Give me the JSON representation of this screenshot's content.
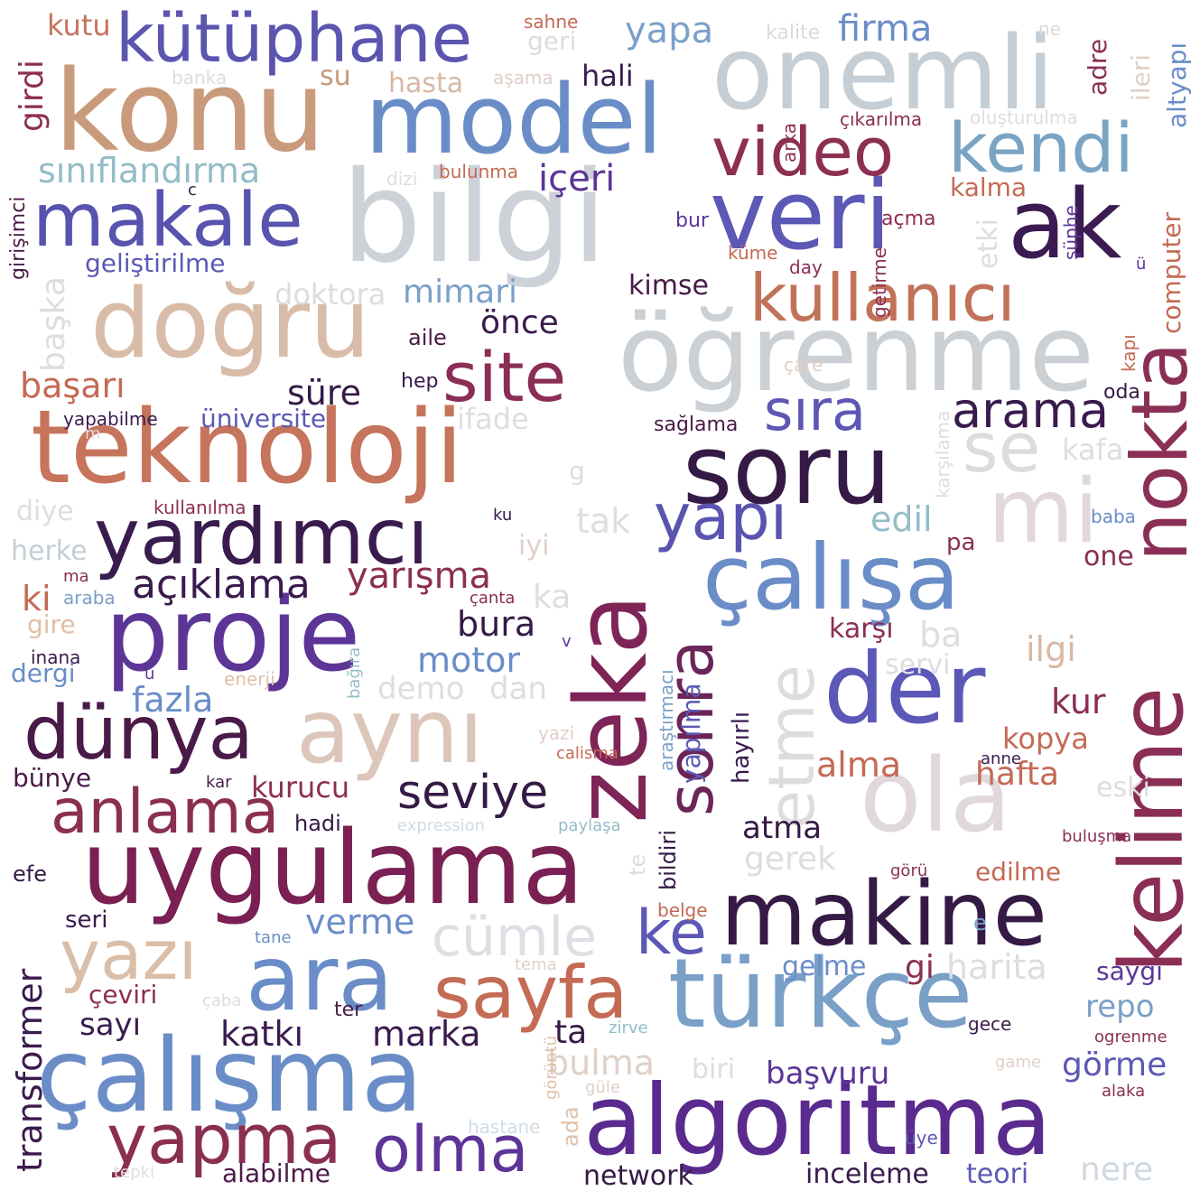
{
  "words": [
    {
      "text": "konu",
      "color": "#C99A7B"
    },
    {
      "text": "model",
      "color": "#6A8DC8"
    },
    {
      "text": "onemli",
      "color": "#C5CED5"
    },
    {
      "text": "kütüphane",
      "color": "#5B55B0"
    },
    {
      "text": "bilgi",
      "color": "#CDD2D8"
    },
    {
      "text": "veri",
      "color": "#5C58B5"
    },
    {
      "text": "ak",
      "color": "#3B1C52"
    },
    {
      "text": "video",
      "color": "#8C2F52"
    },
    {
      "text": "kendi",
      "color": "#7AA4C4"
    },
    {
      "text": "makale",
      "color": "#5753AE"
    },
    {
      "text": "doğru",
      "color": "#D8BCA8"
    },
    {
      "text": "öğrenme",
      "color": "#CBD0D5"
    },
    {
      "text": "kullanıcı",
      "color": "#C17259"
    },
    {
      "text": "site",
      "color": "#8A2E55"
    },
    {
      "text": "teknoloji",
      "color": "#C6745C"
    },
    {
      "text": "soru",
      "color": "#351A45"
    },
    {
      "text": "sıra",
      "color": "#5D56B3"
    },
    {
      "text": "arama",
      "color": "#3A1B4E"
    },
    {
      "text": "se",
      "color": "#DCDCE0"
    },
    {
      "text": "mi",
      "color": "#E2D8DA"
    },
    {
      "text": "nokta",
      "color": "#8A2F55"
    },
    {
      "text": "yardımcı",
      "color": "#3A1B4E"
    },
    {
      "text": "yapı",
      "color": "#5A54B0"
    },
    {
      "text": "çalışa",
      "color": "#6A8DC8"
    },
    {
      "text": "proje",
      "color": "#5C3597"
    },
    {
      "text": "açıklama",
      "color": "#3A1B4E"
    },
    {
      "text": "yarışma",
      "color": "#8C2F52"
    },
    {
      "text": "zeka",
      "color": "#7E2456"
    },
    {
      "text": "sonra",
      "color": "#6A2559"
    },
    {
      "text": "etme",
      "color": "#DFDCE0"
    },
    {
      "text": "der",
      "color": "#5C58B8"
    },
    {
      "text": "kelime",
      "color": "#8A2E55"
    },
    {
      "text": "dünya",
      "color": "#4A1A48"
    },
    {
      "text": "aynı",
      "color": "#DCC6BA"
    },
    {
      "text": "ola",
      "color": "#E0D8DD"
    },
    {
      "text": "anlama",
      "color": "#8A2F52"
    },
    {
      "text": "seviye",
      "color": "#351A45"
    },
    {
      "text": "uygulama",
      "color": "#7A2052"
    },
    {
      "text": "makine",
      "color": "#351A45"
    },
    {
      "text": "yazı",
      "color": "#DABEA8"
    },
    {
      "text": "ara",
      "color": "#6A8DC8"
    },
    {
      "text": "cümle",
      "color": "#E1DDE4"
    },
    {
      "text": "ke",
      "color": "#5C58B5"
    },
    {
      "text": "sayfa",
      "color": "#C46A55"
    },
    {
      "text": "türkçe",
      "color": "#7AA0C8"
    },
    {
      "text": "çalışma",
      "color": "#6A8DC8"
    },
    {
      "text": "yapma",
      "color": "#8A2F52"
    },
    {
      "text": "olma",
      "color": "#5E3498"
    },
    {
      "text": "algoritma",
      "color": "#5A2A8E"
    },
    {
      "text": "transformer",
      "color": "#3A1B4E"
    },
    {
      "text": "kutu",
      "color": "#C6745C"
    },
    {
      "text": "girdi",
      "color": "#8C2F52"
    },
    {
      "text": "su",
      "color": "#C49A7A"
    },
    {
      "text": "banka",
      "color": "#DCDCE0"
    },
    {
      "text": "sahne",
      "color": "#C46A55"
    },
    {
      "text": "geri",
      "color": "#E0DCDD"
    },
    {
      "text": "aşama",
      "color": "#E0D0CA"
    },
    {
      "text": "hasta",
      "color": "#D8B8A5"
    },
    {
      "text": "yapa",
      "color": "#7AA0C8"
    },
    {
      "text": "kalite",
      "color": "#D8DCE0"
    },
    {
      "text": "firma",
      "color": "#6A8DC8"
    },
    {
      "text": "ne",
      "color": "#E0D8DA"
    },
    {
      "text": "hali",
      "color": "#3A1B4E"
    },
    {
      "text": "adre",
      "color": "#8A2E55"
    },
    {
      "text": "ileri",
      "color": "#E0D0C8"
    },
    {
      "text": "altyapı",
      "color": "#6A8DC8"
    },
    {
      "text": "arka",
      "color": "#8C2F52"
    },
    {
      "text": "çıkarılma",
      "color": "#8A2E55"
    },
    {
      "text": "oluşturulma",
      "color": "#E0DCE0"
    },
    {
      "text": "sınıflandırma",
      "color": "#94BCC8"
    },
    {
      "text": "içeri",
      "color": "#5C3597"
    },
    {
      "text": "bulunma",
      "color": "#C46A55"
    },
    {
      "text": "dizi",
      "color": "#E0DCE0"
    },
    {
      "text": "c",
      "color": "#3A1B4E"
    },
    {
      "text": "girişimci",
      "color": "#4A1A48"
    },
    {
      "text": "kalma",
      "color": "#C46A55"
    },
    {
      "text": "bur",
      "color": "#5E3498"
    },
    {
      "text": "açma",
      "color": "#8C2F52"
    },
    {
      "text": "etki",
      "color": "#E0DCE0"
    },
    {
      "text": "şüphe",
      "color": "#5E3498"
    },
    {
      "text": "computer",
      "color": "#C46A55"
    },
    {
      "text": "geliştirilme",
      "color": "#5C58B5"
    },
    {
      "text": "küme",
      "color": "#C46A55"
    },
    {
      "text": "day",
      "color": "#8A2E55"
    },
    {
      "text": "getirme",
      "color": "#8C2F52"
    },
    {
      "text": "ü",
      "color": "#5E3498"
    },
    {
      "text": "doktora",
      "color": "#E0DCDD"
    },
    {
      "text": "mimari",
      "color": "#7AA0C8"
    },
    {
      "text": "kimse",
      "color": "#4A1A48"
    },
    {
      "text": "başka",
      "color": "#E0DCE0"
    },
    {
      "text": "önce",
      "color": "#3A1B4E"
    },
    {
      "text": "aile",
      "color": "#4A1A48"
    },
    {
      "text": "çare",
      "color": "#E0D0C8"
    },
    {
      "text": "kapı",
      "color": "#C46A55"
    },
    {
      "text": "başarı",
      "color": "#C46A55"
    },
    {
      "text": "hep",
      "color": "#3A1B4E"
    },
    {
      "text": "süre",
      "color": "#351A45"
    },
    {
      "text": "oda",
      "color": "#351A45"
    },
    {
      "text": "karşılama",
      "color": "#E0DCE0"
    },
    {
      "text": "yapabilme",
      "color": "#3A1B4E"
    },
    {
      "text": "üniversite",
      "color": "#5C58B5"
    },
    {
      "text": "ifade",
      "color": "#E0DCE0"
    },
    {
      "text": "sağlama",
      "color": "#4A1A48"
    },
    {
      "text": "kafa",
      "color": "#E0DCE0"
    },
    {
      "text": "m",
      "color": "#E0DCE0"
    },
    {
      "text": "g",
      "color": "#E0DCE0"
    },
    {
      "text": "kullanılma",
      "color": "#8C2F52"
    },
    {
      "text": "diye",
      "color": "#E0DCE0"
    },
    {
      "text": "ku",
      "color": "#3A1B4E"
    },
    {
      "text": "tak",
      "color": "#E0DCE0"
    },
    {
      "text": "edil",
      "color": "#94BCC8"
    },
    {
      "text": "baba",
      "color": "#6A8DC8"
    },
    {
      "text": "herke",
      "color": "#C5CED5"
    },
    {
      "text": "iyi",
      "color": "#E0D0C8"
    },
    {
      "text": "pa",
      "color": "#8C2F52"
    },
    {
      "text": "one",
      "color": "#8A2E55"
    },
    {
      "text": "ma",
      "color": "#8A2E55"
    },
    {
      "text": "araba",
      "color": "#7AA0C8"
    },
    {
      "text": "ki",
      "color": "#C46A55"
    },
    {
      "text": "çanta",
      "color": "#8C2F52"
    },
    {
      "text": "ka",
      "color": "#E0DCE0"
    },
    {
      "text": "gire",
      "color": "#E0C0A8"
    },
    {
      "text": "bura",
      "color": "#351A45"
    },
    {
      "text": "yapılma",
      "color": "#5C58B5"
    },
    {
      "text": "araştırmacı",
      "color": "#7AA0C8"
    },
    {
      "text": "karşı",
      "color": "#8A2E55"
    },
    {
      "text": "ba",
      "color": "#E0DCE0"
    },
    {
      "text": "ilgi",
      "color": "#D8B8A5"
    },
    {
      "text": "inana",
      "color": "#3A1B4E"
    },
    {
      "text": "bağıra",
      "color": "#94BCC8"
    },
    {
      "text": "v",
      "color": "#5E3498"
    },
    {
      "text": "motor",
      "color": "#6A8DC8"
    },
    {
      "text": "hayırlı",
      "color": "#3A1B4E"
    },
    {
      "text": "servi",
      "color": "#E0DCE0"
    },
    {
      "text": "dergi",
      "color": "#6A8DC8"
    },
    {
      "text": "u",
      "color": "#5E3498"
    },
    {
      "text": "enerji",
      "color": "#E0C0A8"
    },
    {
      "text": "demo",
      "color": "#E0DCE0"
    },
    {
      "text": "dan",
      "color": "#E0DCE0"
    },
    {
      "text": "kur",
      "color": "#8A2E55"
    },
    {
      "text": "fazla",
      "color": "#6A8DC8"
    },
    {
      "text": "yazi",
      "color": "#E0D0C8"
    },
    {
      "text": "kopya",
      "color": "#C46A55"
    },
    {
      "text": "calisma",
      "color": "#C46A55"
    },
    {
      "text": "bildiri",
      "color": "#351A45"
    },
    {
      "text": "alma",
      "color": "#C46A55"
    },
    {
      "text": "anne",
      "color": "#3A1B4E"
    },
    {
      "text": "bünye",
      "color": "#4A1A48"
    },
    {
      "text": "kar",
      "color": "#4A1A48"
    },
    {
      "text": "kurucu",
      "color": "#8C2F52"
    },
    {
      "text": "hafta",
      "color": "#C46A55"
    },
    {
      "text": "eski",
      "color": "#E0DCE0"
    },
    {
      "text": "hadi",
      "color": "#351A45"
    },
    {
      "text": "expression",
      "color": "#D0DCE4"
    },
    {
      "text": "paylaşa",
      "color": "#94BCC8"
    },
    {
      "text": "atma",
      "color": "#351A45"
    },
    {
      "text": "buluşma",
      "color": "#8A2E55"
    },
    {
      "text": "te",
      "color": "#E0DCE0"
    },
    {
      "text": "gerek",
      "color": "#E0DCE0"
    },
    {
      "text": "efe",
      "color": "#351A45"
    },
    {
      "text": "görü",
      "color": "#8A2E55"
    },
    {
      "text": "edilme",
      "color": "#C46A55"
    },
    {
      "text": "belge",
      "color": "#C46A55"
    },
    {
      "text": "seri",
      "color": "#3A1B4E"
    },
    {
      "text": "verme",
      "color": "#6A8DC8"
    },
    {
      "text": "e",
      "color": "#7AA0C8"
    },
    {
      "text": "tane",
      "color": "#6A8DC8"
    },
    {
      "text": "tema",
      "color": "#E0D0C8"
    },
    {
      "text": "gelme",
      "color": "#6A8DC8"
    },
    {
      "text": "gi",
      "color": "#8C2F52"
    },
    {
      "text": "harita",
      "color": "#E0DCE0"
    },
    {
      "text": "saygı",
      "color": "#5C3597"
    },
    {
      "text": "çeviri",
      "color": "#8C2F52"
    },
    {
      "text": "çaba",
      "color": "#E0DCE0"
    },
    {
      "text": "ter",
      "color": "#4A1A48"
    },
    {
      "text": "repo",
      "color": "#7AA0C8"
    },
    {
      "text": "sayı",
      "color": "#3A1B4E"
    },
    {
      "text": "katkı",
      "color": "#3A1B4E"
    },
    {
      "text": "marka",
      "color": "#3A1B4E"
    },
    {
      "text": "ta",
      "color": "#351A45"
    },
    {
      "text": "zirve",
      "color": "#94BCC8"
    },
    {
      "text": "gece",
      "color": "#3A1B4E"
    },
    {
      "text": "ogrenme",
      "color": "#8C2F52"
    },
    {
      "text": "bulma",
      "color": "#E0D0C8"
    },
    {
      "text": "biri",
      "color": "#E0DCE0"
    },
    {
      "text": "başvuru",
      "color": "#5C3597"
    },
    {
      "text": "game",
      "color": "#E0D0C8"
    },
    {
      "text": "görme",
      "color": "#5C58B5"
    },
    {
      "text": "görüntü",
      "color": "#E0C0A8"
    },
    {
      "text": "güle",
      "color": "#E0D0C8"
    },
    {
      "text": "alaka",
      "color": "#8C2F52"
    },
    {
      "text": "hastane",
      "color": "#D0DCE4"
    },
    {
      "text": "ada",
      "color": "#E0C0A8"
    },
    {
      "text": "üye",
      "color": "#5C58B5"
    },
    {
      "text": "tepki",
      "color": "#E0DCE0"
    },
    {
      "text": "alabilme",
      "color": "#4A1A48"
    },
    {
      "text": "network",
      "color": "#351A45"
    },
    {
      "text": "inceleme",
      "color": "#3A1B4E"
    },
    {
      "text": "teori",
      "color": "#5C58B5"
    },
    {
      "text": "nere",
      "color": "#D0D8E0"
    }
  ]
}
